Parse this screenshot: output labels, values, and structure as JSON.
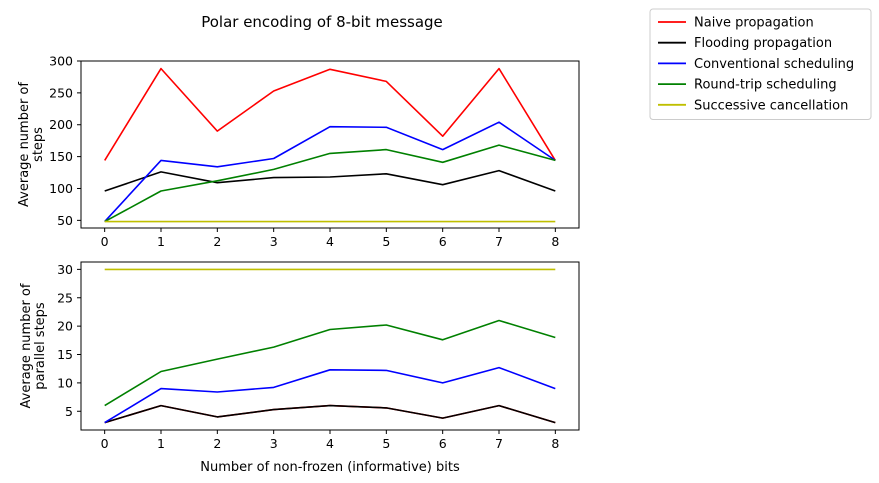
{
  "chart_data": {
    "type": "line",
    "title": "Polar encoding of 8-bit message",
    "xlabel": "Number of non-frozen (informative) bits",
    "x": [
      0,
      1,
      2,
      3,
      4,
      5,
      6,
      7,
      8
    ],
    "legend": {
      "placement": "outside top-right",
      "entries": [
        {
          "name": "Naive propagation",
          "color": "#ff0000"
        },
        {
          "name": "Flooding propagation",
          "color": "#000000"
        },
        {
          "name": "Conventional scheduling",
          "color": "#0000ff"
        },
        {
          "name": "Round-trip scheduling",
          "color": "#008000"
        },
        {
          "name": "Successive cancellation",
          "color": "#bfbf00"
        }
      ]
    },
    "panels": [
      {
        "ylabel": [
          "Average number of",
          "steps"
        ],
        "ylim": [
          38,
          300
        ],
        "yticks": [
          50,
          100,
          150,
          200,
          250,
          300
        ],
        "series": [
          {
            "name": "Naive propagation",
            "color": "#ff0000",
            "values": [
              144,
              288,
              190,
              253,
              287,
              268,
              182,
              288,
              144
            ]
          },
          {
            "name": "Flooding propagation",
            "color": "#000000",
            "values": [
              96,
              126,
              109,
              117,
              118,
              123,
              106,
              128,
              96
            ]
          },
          {
            "name": "Conventional scheduling",
            "color": "#0000ff",
            "values": [
              48,
              144,
              134,
              147,
              197,
              196,
              161,
              204,
              144
            ]
          },
          {
            "name": "Round-trip scheduling",
            "color": "#008000",
            "values": [
              48,
              96,
              112,
              130,
              155,
              161,
              141,
              168,
              144
            ]
          },
          {
            "name": "Successive cancellation",
            "color": "#bfbf00",
            "values": [
              48,
              48,
              48,
              48,
              48,
              48,
              48,
              48,
              48
            ]
          }
        ]
      },
      {
        "ylabel": [
          "Average number of",
          "parallel steps"
        ],
        "ylim": [
          1.7,
          31.3
        ],
        "yticks": [
          5,
          10,
          15,
          20,
          25,
          30
        ],
        "series": [
          {
            "name": "Naive propagation",
            "color": "#ff0000",
            "values": [
              3,
              6,
              4,
              5.3,
              6,
              5.6,
              3.8,
              6,
              3
            ]
          },
          {
            "name": "Flooding propagation",
            "color": "#000000",
            "values": [
              3,
              6,
              4,
              5.3,
              6,
              5.6,
              3.8,
              6,
              3
            ]
          },
          {
            "name": "Conventional scheduling",
            "color": "#0000ff",
            "values": [
              3,
              9,
              8.4,
              9.2,
              12.3,
              12.2,
              10,
              12.7,
              9
            ]
          },
          {
            "name": "Round-trip scheduling",
            "color": "#008000",
            "values": [
              6,
              12,
              14.2,
              16.3,
              19.4,
              20.2,
              17.6,
              21,
              18
            ]
          },
          {
            "name": "Successive cancellation",
            "color": "#bfbf00",
            "values": [
              30,
              30,
              30,
              30,
              30,
              30,
              30,
              30,
              30
            ]
          }
        ]
      }
    ]
  }
}
